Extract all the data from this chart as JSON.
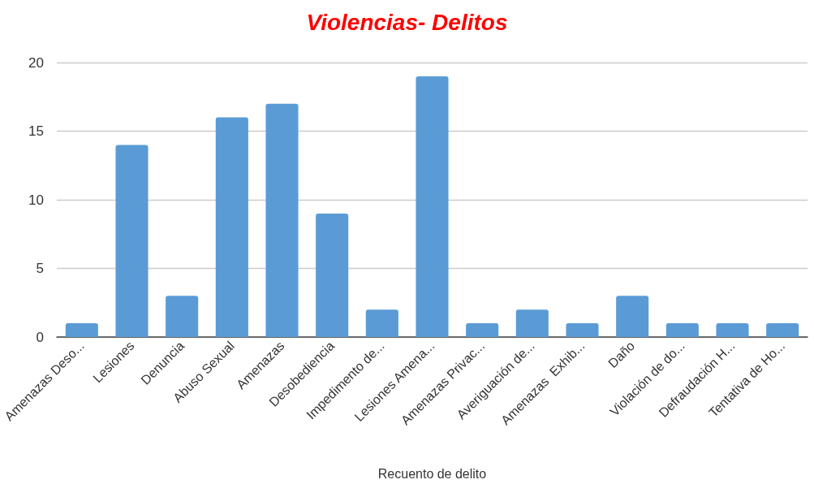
{
  "chart_data": {
    "type": "bar",
    "title": "Violencias- Delitos",
    "xlabel": "Recuento de delito",
    "categories": [
      "Amenazas Deso...",
      "Lesiones",
      "Denuncia",
      "Abuso Sexual",
      "Amenazas",
      "Desobediencia",
      "Impedimento de...",
      "Lesiones Amena...",
      "Amenazas Privac...",
      "Averiguación de...",
      "Amenazas  Exhib...",
      "Daño",
      "Violación de do...",
      "Defraudación H...",
      "Tentativa de Ho..."
    ],
    "values": [
      1,
      14,
      3,
      16,
      17,
      9,
      2,
      19,
      1,
      2,
      1,
      3,
      1,
      1,
      1
    ],
    "color": "#5b9bd5",
    "ylim": [
      0,
      20
    ],
    "yticks": [
      0,
      5,
      10,
      15,
      20
    ],
    "grid": "y"
  }
}
